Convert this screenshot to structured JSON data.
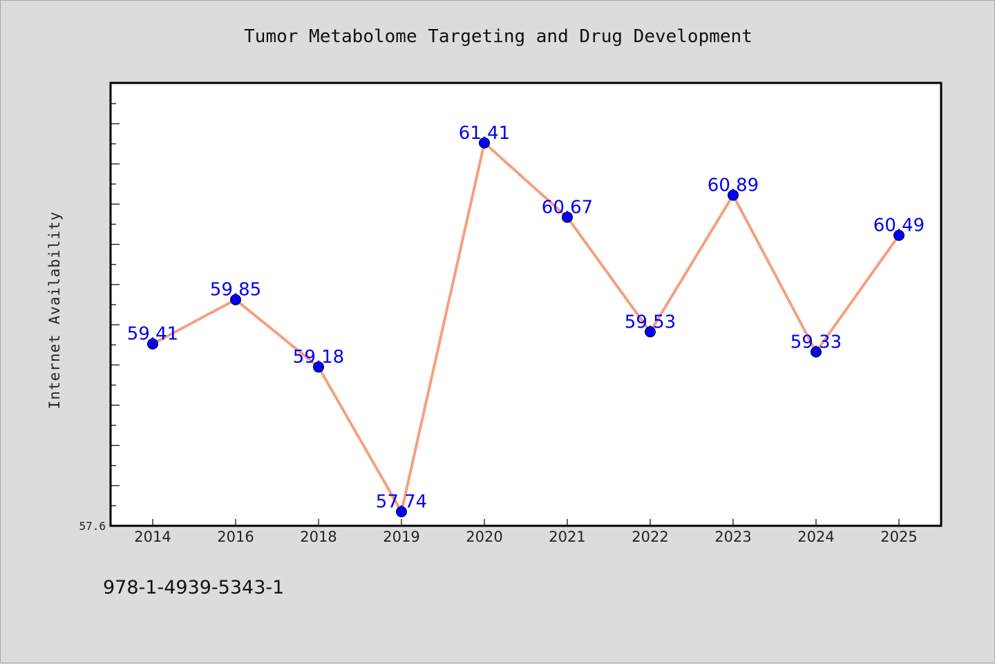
{
  "chart_data": {
    "type": "line",
    "title": "Tumor Metabolome Targeting and Drug Development",
    "xlabel": "",
    "ylabel": "Internet Availability",
    "categories": [
      "2014",
      "2016",
      "2018",
      "2019",
      "2020",
      "2021",
      "2022",
      "2023",
      "2024",
      "2025"
    ],
    "values": [
      59.41,
      59.85,
      59.18,
      57.74,
      61.41,
      60.67,
      59.53,
      60.89,
      59.33,
      60.49
    ],
    "data_labels": [
      "59.41",
      "59.85",
      "59.18",
      "57.74",
      "61.41",
      "60.67",
      "59.53",
      "60.89",
      "59.33",
      "60.49"
    ],
    "y_tick_labels": [
      "57.6"
    ],
    "ylim": [
      57.6,
      62.0
    ],
    "grid": false,
    "legend": "none",
    "line_color": "#f4a07f",
    "marker_color": "#0000ff",
    "label_color": "#0000ee"
  },
  "footer": {
    "code": "978-1-4939-5343-1"
  }
}
